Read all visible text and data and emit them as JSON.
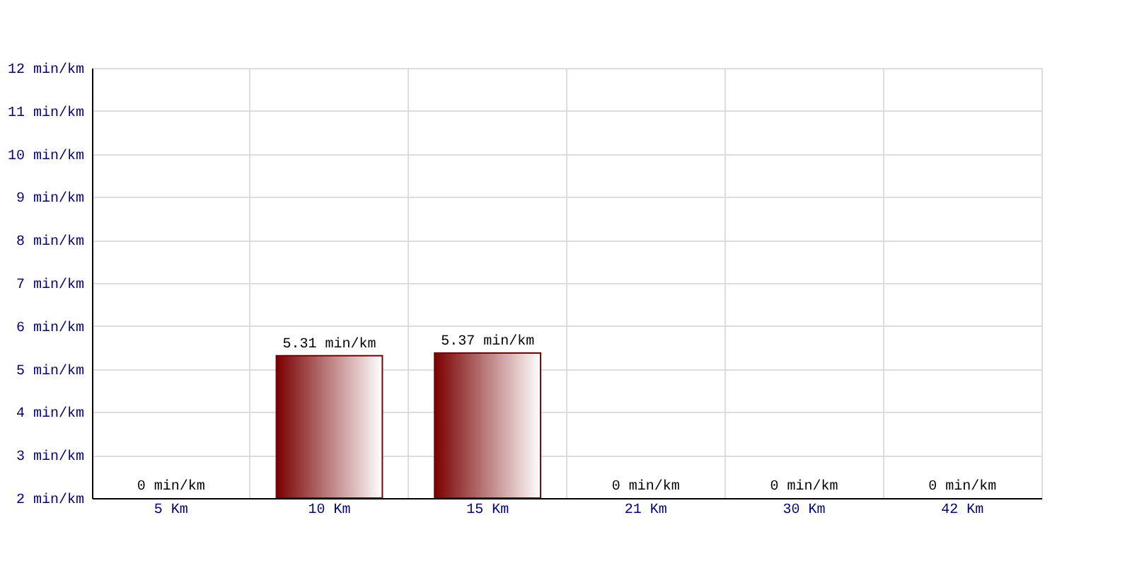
{
  "chart_data": {
    "type": "bar",
    "categories": [
      "5 Km",
      "10 Km",
      "15 Km",
      "21 Km",
      "30 Km",
      "42 Km"
    ],
    "values": [
      null,
      5.31,
      5.37,
      null,
      null,
      null
    ],
    "value_labels": [
      "0 min/km",
      "5.31 min/km",
      "5.37 min/km",
      "0 min/km",
      "0 min/km",
      "0 min/km"
    ],
    "color": "#7a0000",
    "ylim": [
      2,
      12
    ],
    "yticks": [
      {
        "value": 2,
        "label": "2 min/km"
      },
      {
        "value": 3,
        "label": "3 min/km"
      },
      {
        "value": 4,
        "label": "4 min/km"
      },
      {
        "value": 5,
        "label": "5 min/km"
      },
      {
        "value": 6,
        "label": "6 min/km"
      },
      {
        "value": 7,
        "label": "7 min/km"
      },
      {
        "value": 8,
        "label": "8 min/km"
      },
      {
        "value": 9,
        "label": "9 min/km"
      },
      {
        "value": 10,
        "label": "10 min/km"
      },
      {
        "value": 11,
        "label": "11 min/km"
      },
      {
        "value": 12,
        "label": "12 min/km"
      }
    ],
    "grid": true
  }
}
